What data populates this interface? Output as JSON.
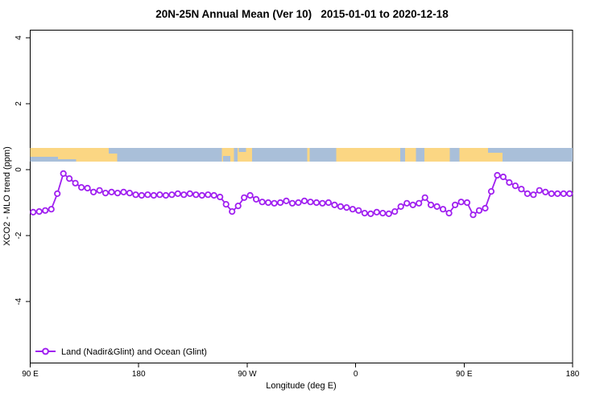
{
  "title": "20N-25N Annual Mean (Ver 10)   2015-01-01 to 2020-12-18",
  "legend": {
    "label": "Land (Nadir&Glint) and Ocean (Glint)"
  },
  "colors": {
    "series": "#A020F0",
    "marker_fill": "#ffffff",
    "land": "#FBD683",
    "ocean": "#A9BFD9",
    "axis": "#000000"
  },
  "chart_data": {
    "type": "line",
    "title": "20N-25N Annual Mean (Ver 10)   2015-01-01 to 2020-12-18",
    "xlabel": "Longitude (deg E)",
    "ylabel": "XCO2 - MLO trend (ppm)",
    "xlim": [
      90,
      540
    ],
    "ylim": [
      -6,
      4.5
    ],
    "grid": false,
    "legend_position": "bottom-left-inside",
    "x_ticks": [
      {
        "lon": 90,
        "label": "90 E"
      },
      {
        "lon": 180,
        "label": "180"
      },
      {
        "lon": 270,
        "label": "90 W"
      },
      {
        "lon": 360,
        "label": "0"
      },
      {
        "lon": 450,
        "label": "90 E"
      },
      {
        "lon": 540,
        "label": "180"
      }
    ],
    "y_ticks": [
      {
        "value": 4,
        "label": "4"
      },
      {
        "value": 2,
        "label": "2"
      },
      {
        "value": 0,
        "label": "0"
      },
      {
        "value": -2,
        "label": "-2"
      },
      {
        "value": -4,
        "label": "-4"
      }
    ],
    "series": [
      {
        "name": "Land (Nadir&Glint) and Ocean (Glint)",
        "marker": "open-circle",
        "x": [
          92.5,
          97.5,
          102.5,
          107.5,
          112.5,
          117.5,
          122.5,
          127.5,
          132.5,
          137.5,
          142.5,
          147.5,
          152.5,
          157.5,
          162.5,
          167.5,
          172.5,
          177.5,
          182.5,
          187.5,
          192.5,
          197.5,
          202.5,
          207.5,
          212.5,
          217.5,
          222.5,
          227.5,
          232.5,
          237.5,
          242.5,
          247.5,
          252.5,
          257.5,
          262.5,
          267.5,
          272.5,
          277.5,
          282.5,
          287.5,
          292.5,
          297.5,
          302.5,
          307.5,
          312.5,
          317.5,
          322.5,
          327.5,
          332.5,
          337.5,
          342.5,
          347.5,
          352.5,
          357.5,
          362.5,
          367.5,
          372.5,
          377.5,
          382.5,
          387.5,
          392.5,
          397.5,
          402.5,
          407.5,
          412.5,
          417.5,
          422.5,
          427.5,
          432.5,
          437.5,
          442.5,
          447.5,
          452.5,
          457.5,
          462.5,
          467.5,
          472.5,
          477.5,
          482.5,
          487.5,
          492.5,
          497.5,
          502.5,
          507.5,
          512.5,
          517.5,
          522.5,
          527.5,
          532.5,
          537.5
        ],
        "values": [
          -1.29,
          -1.27,
          -1.24,
          -1.2,
          -0.73,
          -0.12,
          -0.27,
          -0.41,
          -0.54,
          -0.56,
          -0.68,
          -0.63,
          -0.71,
          -0.68,
          -0.71,
          -0.68,
          -0.71,
          -0.76,
          -0.78,
          -0.76,
          -0.78,
          -0.76,
          -0.78,
          -0.76,
          -0.73,
          -0.76,
          -0.73,
          -0.76,
          -0.78,
          -0.76,
          -0.78,
          -0.83,
          -1.05,
          -1.27,
          -1.1,
          -0.85,
          -0.78,
          -0.9,
          -0.98,
          -1.0,
          -1.02,
          -1.0,
          -0.95,
          -1.02,
          -1.0,
          -0.95,
          -0.98,
          -1.0,
          -1.02,
          -1.0,
          -1.07,
          -1.12,
          -1.15,
          -1.2,
          -1.24,
          -1.32,
          -1.34,
          -1.29,
          -1.32,
          -1.34,
          -1.27,
          -1.12,
          -1.02,
          -1.07,
          -1.02,
          -0.85,
          -1.07,
          -1.12,
          -1.2,
          -1.32,
          -1.07,
          -0.98,
          -1.0,
          -1.37,
          -1.24,
          -1.17,
          -0.66,
          -0.17,
          -0.22,
          -0.39,
          -0.49,
          -0.59,
          -0.73,
          -0.76,
          -0.63,
          -0.68,
          -0.73,
          -0.73,
          -0.73,
          -0.73
        ]
      }
    ],
    "map_strip": {
      "description": "world coastline strip for 20N-25N drawn across plot",
      "value_range": [
        0.25,
        0.66
      ],
      "segments": [
        {
          "from": 90,
          "to": 162,
          "type": "land"
        },
        {
          "from": 162,
          "to": 249,
          "type": "ocean"
        },
        {
          "from": 249,
          "to": 259,
          "type": "land"
        },
        {
          "from": 259,
          "to": 262,
          "type": "ocean"
        },
        {
          "from": 262,
          "to": 274,
          "type": "land"
        },
        {
          "from": 274,
          "to": 320,
          "type": "ocean"
        },
        {
          "from": 320,
          "to": 322,
          "type": "land"
        },
        {
          "from": 322,
          "to": 344,
          "type": "ocean"
        },
        {
          "from": 344,
          "to": 397,
          "type": "land"
        },
        {
          "from": 397,
          "to": 401,
          "type": "ocean"
        },
        {
          "from": 401,
          "to": 410,
          "type": "land"
        },
        {
          "from": 410,
          "to": 417,
          "type": "ocean"
        },
        {
          "from": 417,
          "to": 438,
          "type": "land"
        },
        {
          "from": 438,
          "to": 446,
          "type": "ocean"
        },
        {
          "from": 446,
          "to": 482,
          "type": "land"
        },
        {
          "from": 482,
          "to": 540,
          "type": "ocean"
        }
      ],
      "patches": [
        {
          "from": 90,
          "to": 113,
          "type": "ocean",
          "y0": 0.65,
          "y1": 1
        },
        {
          "from": 113,
          "to": 128,
          "type": "ocean",
          "y0": 0.82,
          "y1": 1
        },
        {
          "from": 155,
          "to": 162,
          "type": "ocean",
          "y0": 0,
          "y1": 0.4
        },
        {
          "from": 250,
          "to": 256,
          "type": "ocean",
          "y0": 0.6,
          "y1": 1
        },
        {
          "from": 263,
          "to": 269,
          "type": "ocean",
          "y0": 0,
          "y1": 0.3
        },
        {
          "from": 470,
          "to": 482,
          "type": "ocean",
          "y0": 0,
          "y1": 0.35
        }
      ]
    }
  }
}
